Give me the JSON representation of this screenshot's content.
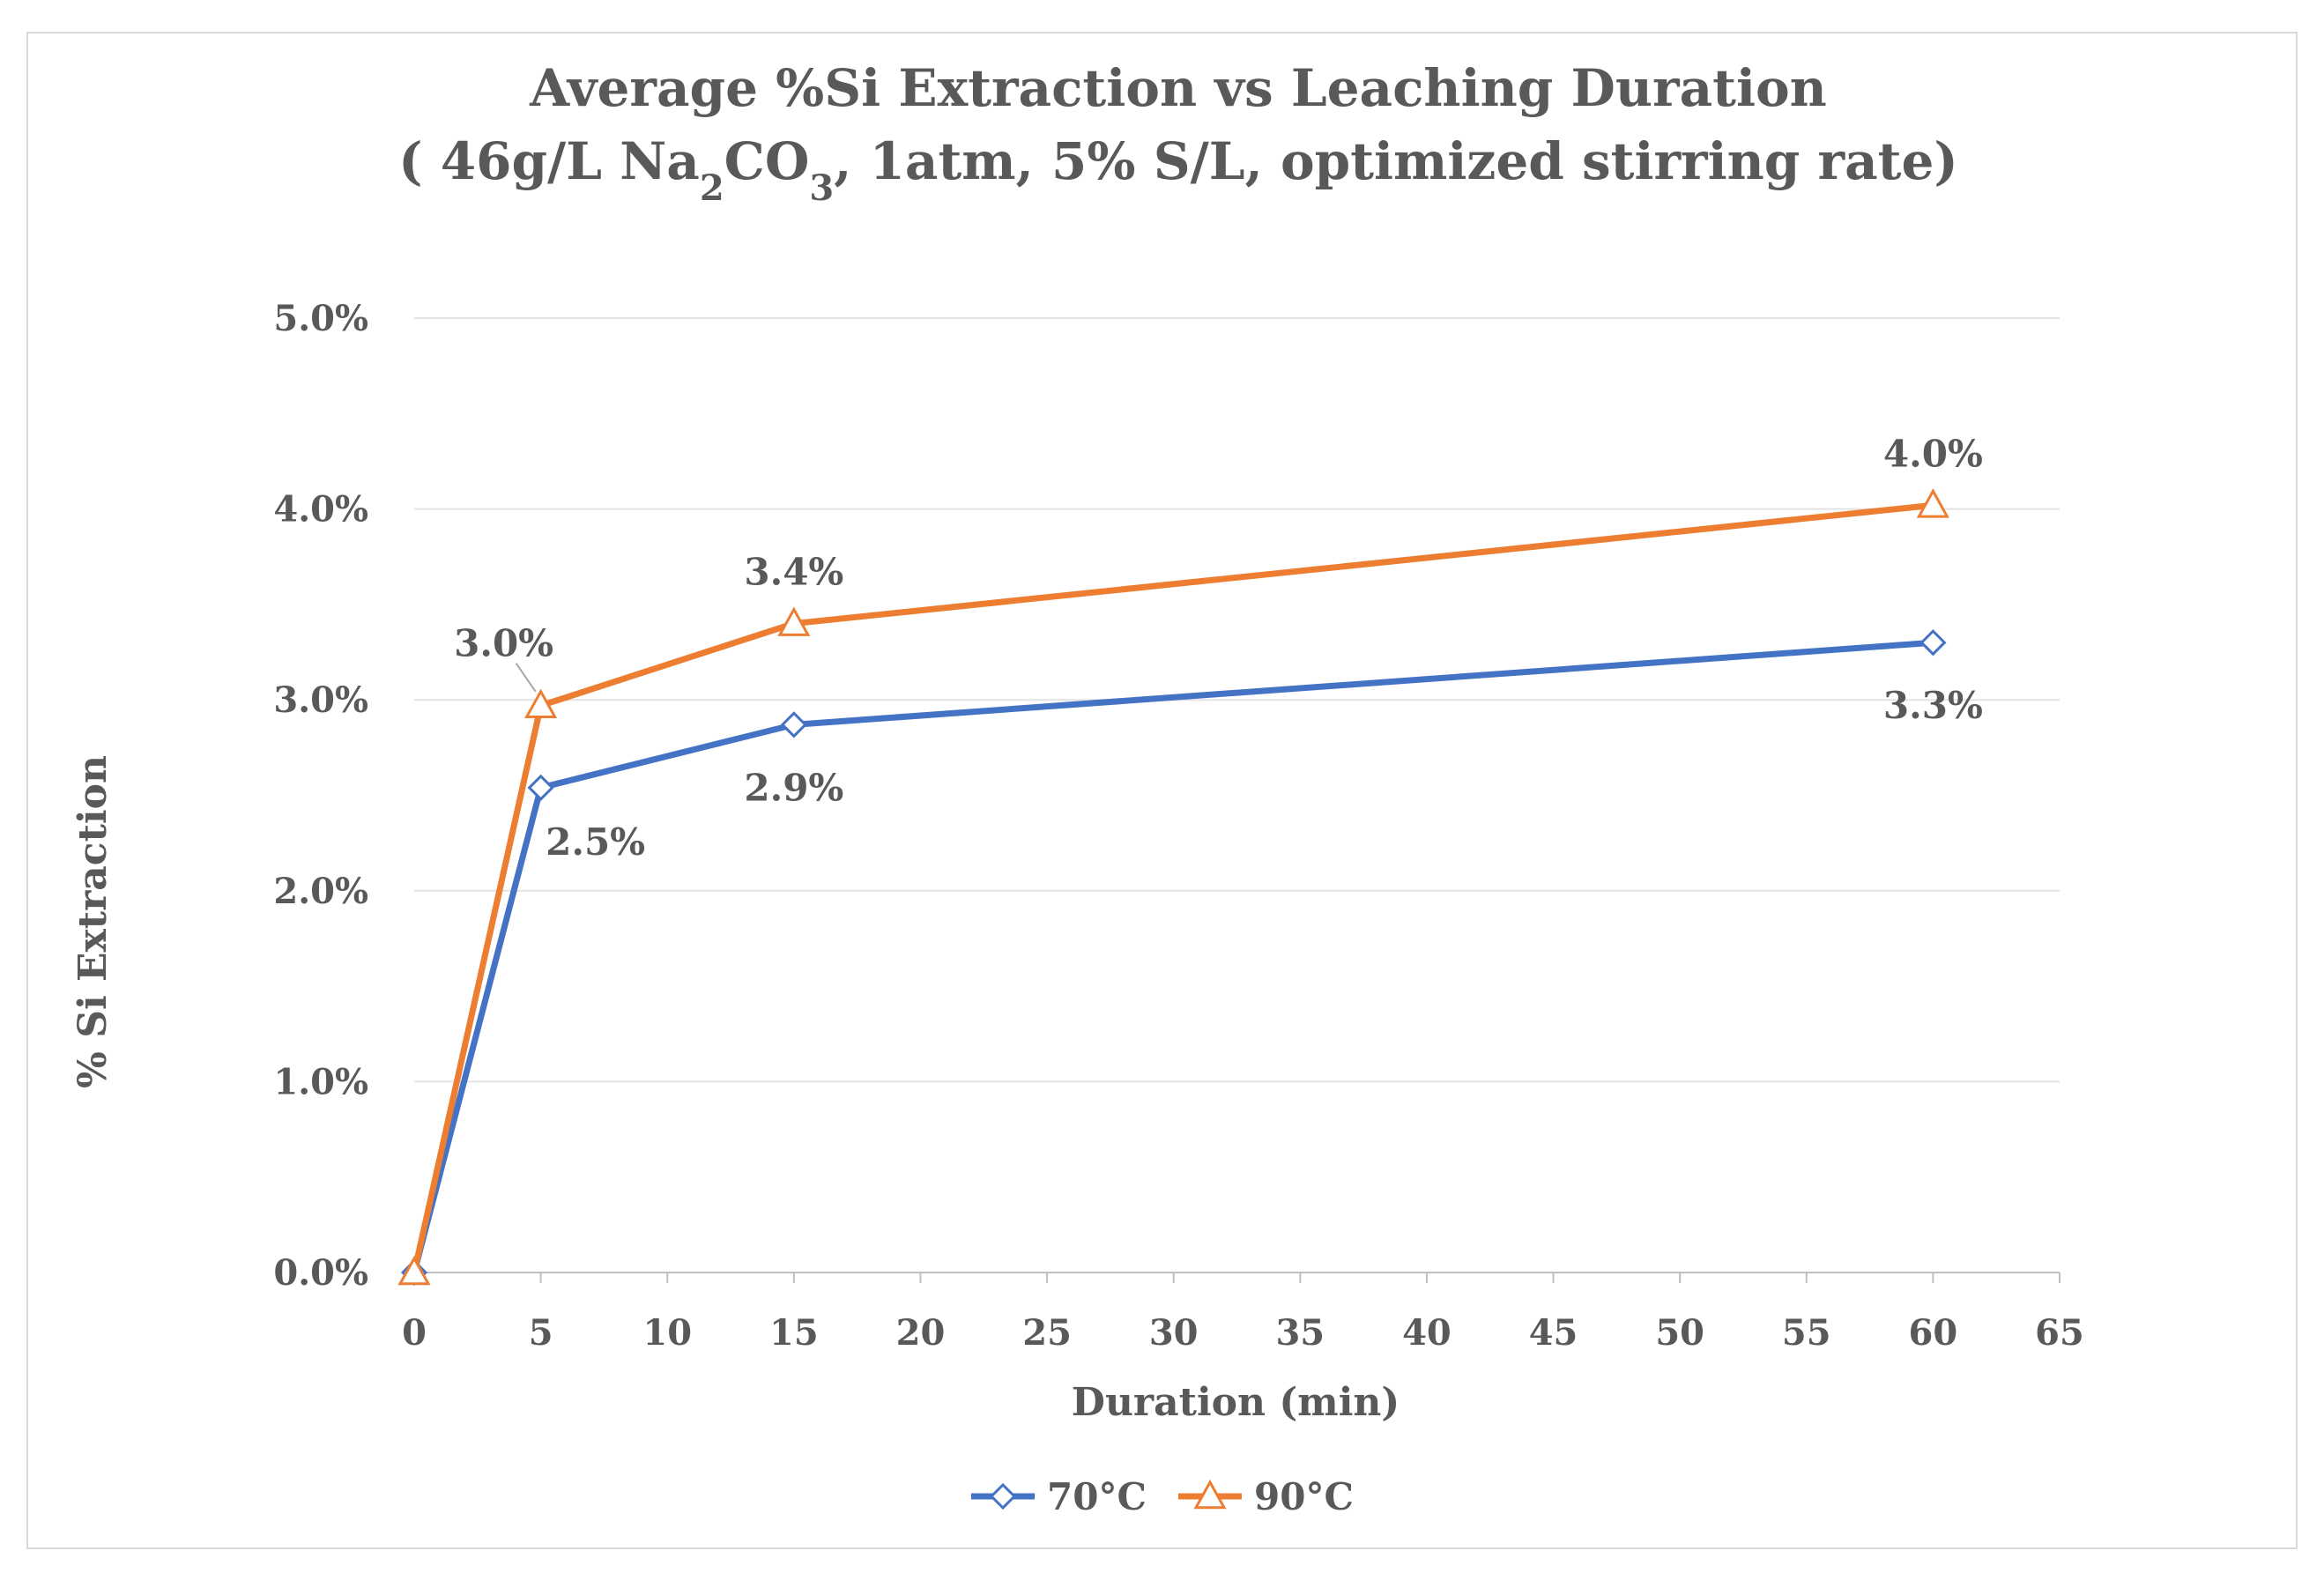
{
  "chart_data": {
    "type": "line",
    "title_line1": "Average %Si Extraction vs Leaching Duration",
    "title_line2": {
      "before": "( 46g/L Na",
      "sub1": "2",
      "middle": "CO",
      "sub2": "3",
      "after": ", 1atm, 5% S/L, optimized stirring rate)"
    },
    "xlabel": "Duration (min)",
    "ylabel": "% Si Extraction",
    "xlim": [
      0,
      65
    ],
    "ylim": [
      0,
      0.05
    ],
    "xticks": [
      0,
      5,
      10,
      15,
      20,
      25,
      30,
      35,
      40,
      45,
      50,
      55,
      60,
      65
    ],
    "yticks": [
      0,
      0.01,
      0.02,
      0.03,
      0.04,
      0.05
    ],
    "ytick_labels": [
      "0.0%",
      "1.0%",
      "2.0%",
      "3.0%",
      "4.0%",
      "5.0%"
    ],
    "grid": "horizontal",
    "legend_position": "bottom-center",
    "x": [
      0,
      5,
      15,
      60
    ],
    "series": [
      {
        "name": "70°C",
        "color": "#4472c4",
        "marker": "diamond",
        "values": [
          0.0,
          0.0254,
          0.0287,
          0.033
        ],
        "data_labels": [
          "",
          "2.5%",
          "2.9%",
          "3.3%"
        ]
      },
      {
        "name": "90°C",
        "color": "#ed7d31",
        "marker": "triangle",
        "values": [
          0.0,
          0.0297,
          0.034,
          0.0402
        ],
        "data_labels": [
          "",
          "3.0%",
          "3.4%",
          "4.0%"
        ]
      }
    ]
  }
}
